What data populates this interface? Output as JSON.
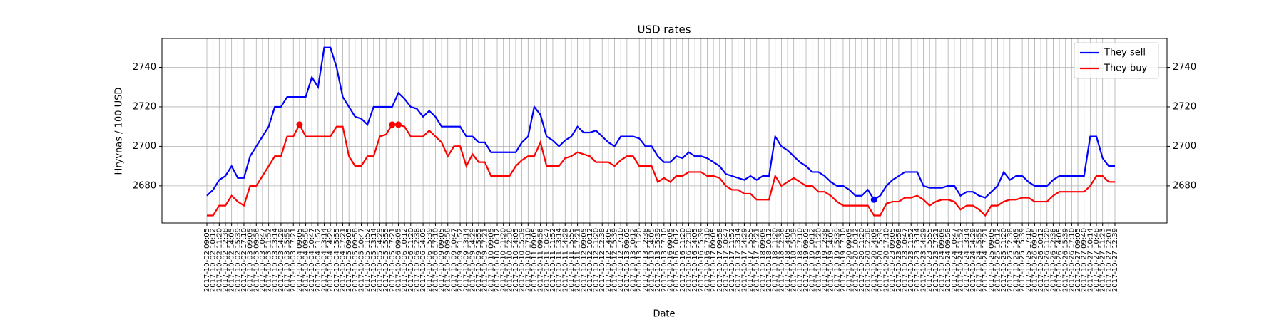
{
  "chart_data": {
    "type": "line",
    "title": "USD rates",
    "xlabel": "Date",
    "ylabel": "Hryvnas / 100 USD",
    "categories": [
      "2017-10-02 09:05",
      "2017-10-02 10:12",
      "2017-10-02 11:20",
      "2017-10-02 12:38",
      "2017-10-02 14:05",
      "2017-10-02 15:39",
      "2017-10-02 17:10",
      "2017-10-03 09:05",
      "2017-10-03 09:58",
      "2017-10-03 10:47",
      "2017-10-03 11:52",
      "2017-10-03 13:14",
      "2017-10-03 14:29",
      "2017-10-03 15:55",
      "2017-10-03 17:21",
      "2017-10-04 09:05",
      "2017-10-04 09:58",
      "2017-10-04 10:47",
      "2017-10-04 11:52",
      "2017-10-04 13:14",
      "2017-10-04 14:29",
      "2017-10-04 15:55",
      "2017-10-04 17:21",
      "2017-10-05 09:05",
      "2017-10-05 09:58",
      "2017-10-05 10:47",
      "2017-10-05 11:52",
      "2017-10-05 13:14",
      "2017-10-05 14:29",
      "2017-10-05 15:55",
      "2017-10-05 17:21",
      "2017-10-06 09:05",
      "2017-10-06 10:12",
      "2017-10-06 11:20",
      "2017-10-06 12:38",
      "2017-10-06 14:05",
      "2017-10-06 15:39",
      "2017-10-06 17:10",
      "2017-10-09 09:05",
      "2017-10-09 09:58",
      "2017-10-09 10:47",
      "2017-10-09 11:52",
      "2017-10-09 13:14",
      "2017-10-09 14:29",
      "2017-10-09 15:55",
      "2017-10-09 17:21",
      "2017-10-10 09:05",
      "2017-10-10 10:12",
      "2017-10-10 11:20",
      "2017-10-10 12:38",
      "2017-10-10 14:05",
      "2017-10-10 15:39",
      "2017-10-10 17:10",
      "2017-10-11 09:05",
      "2017-10-11 09:58",
      "2017-10-11 10:47",
      "2017-10-11 11:52",
      "2017-10-11 13:14",
      "2017-10-11 14:29",
      "2017-10-11 15:55",
      "2017-10-11 17:21",
      "2017-10-12 09:05",
      "2017-10-12 10:12",
      "2017-10-12 11:20",
      "2017-10-12 12:38",
      "2017-10-12 14:05",
      "2017-10-12 15:39",
      "2017-10-12 17:10",
      "2017-10-13 09:05",
      "2017-10-13 10:12",
      "2017-10-13 11:20",
      "2017-10-13 12:38",
      "2017-10-13 14:05",
      "2017-10-13 15:39",
      "2017-10-13 17:10",
      "2017-10-16 09:05",
      "2017-10-16 10:12",
      "2017-10-16 11:20",
      "2017-10-16 12:38",
      "2017-10-16 14:05",
      "2017-10-16 15:39",
      "2017-10-16 17:10",
      "2017-10-17 09:05",
      "2017-10-17 09:58",
      "2017-10-17 10:47",
      "2017-10-17 11:52",
      "2017-10-17 13:14",
      "2017-10-17 14:29",
      "2017-10-17 15:55",
      "2017-10-17 17:21",
      "2017-10-18 09:05",
      "2017-10-18 10:12",
      "2017-10-18 11:20",
      "2017-10-18 12:38",
      "2017-10-18 14:05",
      "2017-10-18 15:39",
      "2017-10-18 17:10",
      "2017-10-19 09:05",
      "2017-10-19 10:12",
      "2017-10-19 11:20",
      "2017-10-19 12:38",
      "2017-10-19 14:05",
      "2017-10-19 15:39",
      "2017-10-19 17:10",
      "2017-10-20 09:05",
      "2017-10-20 10:12",
      "2017-10-20 11:20",
      "2017-10-20 12:38",
      "2017-10-20 14:05",
      "2017-10-20 15:39",
      "2017-10-20 17:10",
      "2017-10-23 09:05",
      "2017-10-23 09:58",
      "2017-10-23 10:47",
      "2017-10-23 11:52",
      "2017-10-23 13:14",
      "2017-10-23 14:29",
      "2017-10-23 15:55",
      "2017-10-23 17:21",
      "2017-10-24 09:05",
      "2017-10-24 09:58",
      "2017-10-24 10:47",
      "2017-10-24 11:52",
      "2017-10-24 13:14",
      "2017-10-24 14:29",
      "2017-10-24 15:55",
      "2017-10-24 17:21",
      "2017-10-25 09:05",
      "2017-10-25 10:12",
      "2017-10-25 11:20",
      "2017-10-25 12:38",
      "2017-10-25 14:05",
      "2017-10-25 15:39",
      "2017-10-25 17:10",
      "2017-10-26 09:05",
      "2017-10-26 10:12",
      "2017-10-26 11:20",
      "2017-10-26 12:38",
      "2017-10-26 14:05",
      "2017-10-26 15:39",
      "2017-10-26 17:10",
      "2017-10-27 09:05",
      "2017-10-27 09:40",
      "2017-10-27 10:14",
      "2017-10-27 10:48",
      "2017-10-27 11:23",
      "2017-10-27 12:01",
      "2017-10-27 12:39"
    ],
    "series": [
      {
        "name": "They sell",
        "color": "#0000ff",
        "highlights": [
          108
        ],
        "values": [
          2675,
          2678,
          2683,
          2685,
          2690,
          2684,
          2684,
          2695,
          2700,
          2705,
          2710,
          2720,
          2720,
          2725,
          2725,
          2725,
          2725,
          2735,
          2730,
          2750,
          2750,
          2740,
          2725,
          2720,
          2715,
          2714,
          2711,
          2720,
          2720,
          2720,
          2720,
          2727,
          2724,
          2720,
          2719,
          2715,
          2718,
          2715,
          2710,
          2710,
          2710,
          2710,
          2705,
          2705,
          2702,
          2702,
          2697,
          2697,
          2697,
          2697,
          2697,
          2702,
          2705,
          2720,
          2716,
          2705,
          2703,
          2700,
          2703,
          2705,
          2710,
          2707,
          2707,
          2708,
          2705,
          2702,
          2700,
          2705,
          2705,
          2705,
          2704,
          2700,
          2700,
          2695,
          2692,
          2692,
          2695,
          2694,
          2697,
          2695,
          2695,
          2694,
          2692,
          2690,
          2686,
          2685,
          2684,
          2683,
          2685,
          2683,
          2685,
          2685,
          2705,
          2700,
          2698,
          2695,
          2692,
          2690,
          2687,
          2687,
          2685,
          2682,
          2680,
          2680,
          2678,
          2675,
          2675,
          2678,
          2673,
          2675,
          2680,
          2683,
          2685,
          2687,
          2687,
          2687,
          2680,
          2679,
          2679,
          2679,
          2680,
          2680,
          2675,
          2677,
          2677,
          2675,
          2674,
          2677,
          2680,
          2687,
          2683,
          2685,
          2685,
          2682,
          2680,
          2680,
          2680,
          2683,
          2685,
          2685,
          2685,
          2685,
          2685,
          2705,
          2705,
          2694,
          2690,
          2690
        ]
      },
      {
        "name": "They buy",
        "color": "#ff0000",
        "highlights": [
          15,
          30,
          31
        ],
        "values": [
          2665,
          2665,
          2670,
          2670,
          2675,
          2672,
          2670,
          2680,
          2680,
          2685,
          2690,
          2695,
          2695,
          2705,
          2705,
          2711,
          2705,
          2705,
          2705,
          2705,
          2705,
          2710,
          2710,
          2695,
          2690,
          2690,
          2695,
          2695,
          2705,
          2706,
          2711,
          2711,
          2710,
          2705,
          2705,
          2705,
          2708,
          2705,
          2702,
          2695,
          2700,
          2700,
          2690,
          2696,
          2692,
          2692,
          2685,
          2685,
          2685,
          2685,
          2690,
          2693,
          2695,
          2695,
          2702,
          2690,
          2690,
          2690,
          2694,
          2695,
          2697,
          2696,
          2695,
          2692,
          2692,
          2692,
          2690,
          2693,
          2695,
          2695,
          2690,
          2690,
          2690,
          2682,
          2684,
          2682,
          2685,
          2685,
          2687,
          2687,
          2687,
          2685,
          2685,
          2684,
          2680,
          2678,
          2678,
          2676,
          2676,
          2673,
          2673,
          2673,
          2685,
          2680,
          2682,
          2684,
          2682,
          2680,
          2680,
          2677,
          2677,
          2675,
          2672,
          2670,
          2670,
          2670,
          2670,
          2670,
          2665,
          2665,
          2671,
          2672,
          2672,
          2674,
          2674,
          2675,
          2673,
          2670,
          2672,
          2673,
          2673,
          2672,
          2668,
          2670,
          2670,
          2668,
          2665,
          2670,
          2670,
          2672,
          2673,
          2673,
          2674,
          2674,
          2672,
          2672,
          2672,
          2675,
          2677,
          2677,
          2677,
          2677,
          2677,
          2680,
          2685,
          2685,
          2682,
          2682
        ]
      }
    ],
    "ylim": [
      2661.2,
      2754.6
    ],
    "yticks": [
      2680,
      2700,
      2720,
      2740
    ],
    "y_right_labels": true,
    "grid": true,
    "legend": "upper right"
  }
}
